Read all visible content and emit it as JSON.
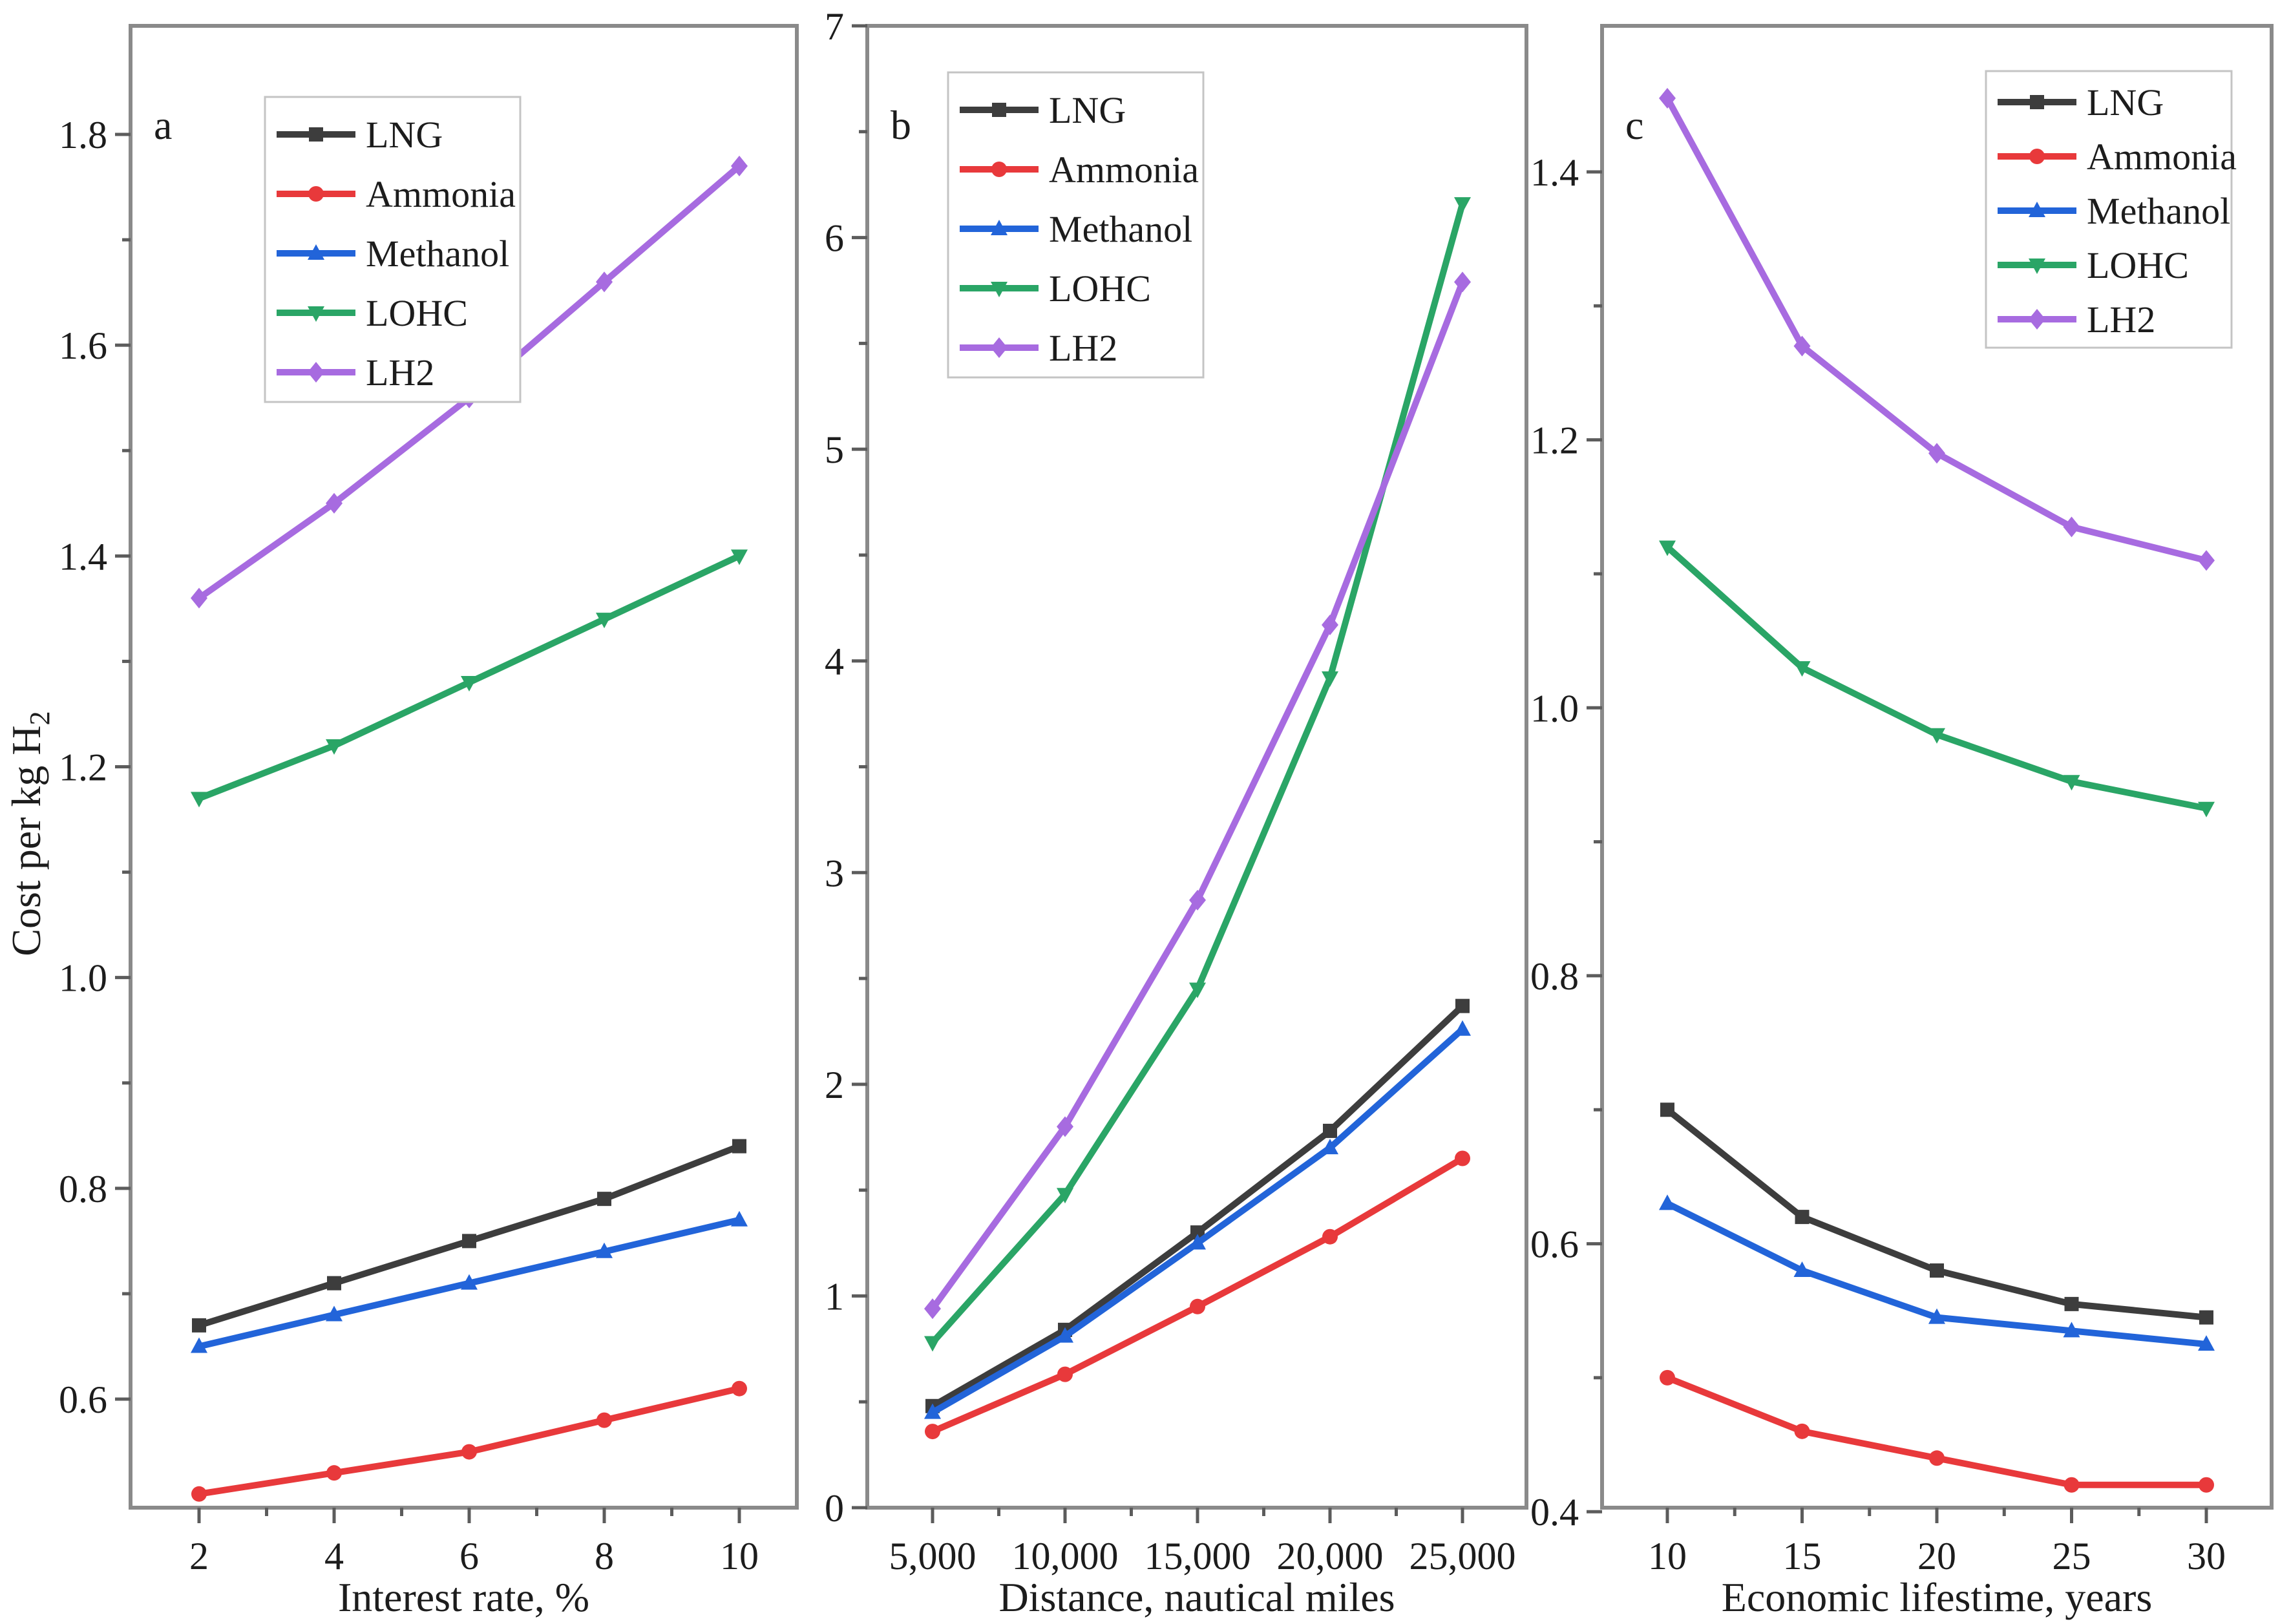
{
  "figure": {
    "ylabel_main": "Cost per kg H",
    "ylabel_sub": "2",
    "frame_color": "#8a8a8a",
    "tick_color": "#5c5c5c",
    "text_color": "#1c1c1c",
    "legend_border": "#c4c4c4",
    "background": "#ffffff",
    "series_styles": [
      {
        "name": "LNG",
        "color": "#3d3d3d",
        "marker": "square"
      },
      {
        "name": "Ammonia",
        "color": "#e8393b",
        "marker": "circle"
      },
      {
        "name": "Methanol",
        "color": "#2264d9",
        "marker": "triangle-up"
      },
      {
        "name": "LOHC",
        "color": "#2aa566",
        "marker": "triangle-down"
      },
      {
        "name": "LH2",
        "color": "#a76be0",
        "marker": "diamond"
      }
    ]
  },
  "chart_data": [
    {
      "type": "line",
      "panel_label": "a",
      "xlabel": "Interest rate, %",
      "x": [
        2,
        4,
        6,
        8,
        10
      ],
      "xtick_labels": [
        "2",
        "4",
        "6",
        "8",
        "10"
      ],
      "ylim": [
        0.497,
        1.903
      ],
      "yticks": [
        0.6,
        0.8,
        1.0,
        1.2,
        1.4,
        1.6,
        1.8
      ],
      "ytick_labels": [
        "0.6",
        "0.8",
        "1.0",
        "1.2",
        "1.4",
        "1.6",
        "1.8"
      ],
      "yticks_minor": [
        0.7,
        0.9,
        1.1,
        1.3,
        1.5,
        1.7
      ],
      "legend_position": "upper-left",
      "legend_entries": [
        "LNG",
        "Ammonia",
        "Methanol",
        "LOHC",
        "LH2"
      ],
      "series": [
        {
          "name": "LNG",
          "values": [
            0.67,
            0.71,
            0.75,
            0.79,
            0.84
          ]
        },
        {
          "name": "Ammonia",
          "values": [
            0.51,
            0.53,
            0.55,
            0.58,
            0.61
          ]
        },
        {
          "name": "Methanol",
          "values": [
            0.65,
            0.68,
            0.71,
            0.74,
            0.77
          ]
        },
        {
          "name": "LOHC",
          "values": [
            1.17,
            1.22,
            1.28,
            1.34,
            1.4
          ]
        },
        {
          "name": "LH2",
          "values": [
            1.36,
            1.45,
            1.55,
            1.66,
            1.77
          ]
        }
      ]
    },
    {
      "type": "line",
      "panel_label": "b",
      "xlabel": "Distance, nautical miles",
      "x": [
        5000,
        10000,
        15000,
        20000,
        25000
      ],
      "xtick_labels": [
        "5,000",
        "10,000",
        "15,000",
        "20,000",
        "25,000"
      ],
      "ylim": [
        0,
        7
      ],
      "yticks": [
        0,
        1,
        2,
        3,
        4,
        5,
        6,
        7
      ],
      "ytick_labels": [
        "0",
        "1",
        "2",
        "3",
        "4",
        "5",
        "6",
        "7"
      ],
      "yticks_minor": [
        0.5,
        1.5,
        2.5,
        3.5,
        4.5,
        5.5,
        6.5
      ],
      "legend_position": "upper-left",
      "legend_entries": [
        "LNG",
        "Ammonia",
        "Methanol",
        "LOHC",
        "LH2"
      ],
      "series": [
        {
          "name": "LNG",
          "values": [
            0.48,
            0.84,
            1.3,
            1.78,
            2.37
          ]
        },
        {
          "name": "Ammonia",
          "values": [
            0.36,
            0.63,
            0.95,
            1.28,
            1.65
          ]
        },
        {
          "name": "Methanol",
          "values": [
            0.45,
            0.81,
            1.25,
            1.7,
            2.26
          ]
        },
        {
          "name": "LOHC",
          "values": [
            0.78,
            1.48,
            2.45,
            3.92,
            6.16
          ]
        },
        {
          "name": "LH2",
          "values": [
            0.94,
            1.8,
            2.87,
            4.17,
            5.79
          ]
        }
      ]
    },
    {
      "type": "line",
      "panel_label": "c",
      "xlabel": "Economic lifestime, years",
      "x": [
        10,
        15,
        20,
        25,
        30
      ],
      "xtick_labels": [
        "10",
        "15",
        "20",
        "25",
        "30"
      ],
      "ylim": [
        0.403,
        1.509
      ],
      "yticks": [
        0.4,
        0.6,
        0.8,
        1.0,
        1.2,
        1.4
      ],
      "ytick_labels": [
        "0.4",
        "0.6",
        "0.8",
        "1.0",
        "1.2",
        "1.4"
      ],
      "yticks_minor": [
        0.5,
        0.7,
        0.9,
        1.1,
        1.3
      ],
      "legend_position": "upper-right",
      "legend_entries": [
        "LNG",
        "Ammonia",
        "Methanol",
        "LOHC",
        "LH2"
      ],
      "series": [
        {
          "name": "LNG",
          "values": [
            0.7,
            0.62,
            0.58,
            0.555,
            0.545
          ]
        },
        {
          "name": "Ammonia",
          "values": [
            0.5,
            0.46,
            0.44,
            0.42,
            0.42
          ]
        },
        {
          "name": "Methanol",
          "values": [
            0.63,
            0.58,
            0.545,
            0.535,
            0.525
          ]
        },
        {
          "name": "LOHC",
          "values": [
            1.12,
            1.03,
            0.98,
            0.945,
            0.925
          ]
        },
        {
          "name": "LH2",
          "values": [
            1.455,
            1.27,
            1.19,
            1.135,
            1.11
          ]
        }
      ]
    }
  ]
}
